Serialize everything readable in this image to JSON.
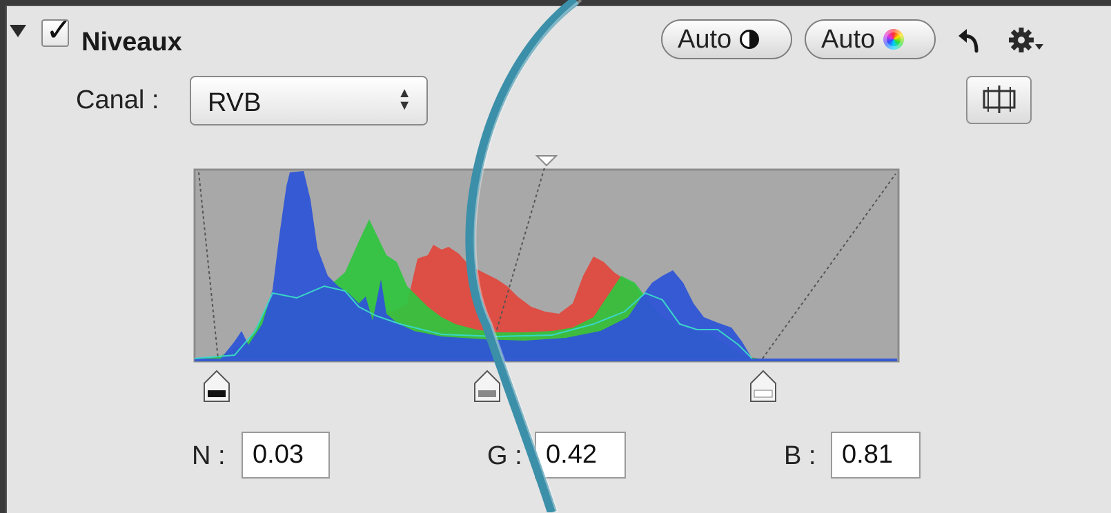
{
  "panel": {
    "title": "Niveaux",
    "enabled_check": "✓"
  },
  "toolbar": {
    "auto_contrast_label": "Auto",
    "auto_color_label": "Auto",
    "icons": [
      "disclosure-triangle-icon",
      "checkbox-icon",
      "contrast-icon",
      "color-wheel-icon",
      "undo-icon",
      "gear-icon",
      "compare-icon"
    ]
  },
  "channel": {
    "label": "Canal :",
    "selected": "RVB"
  },
  "levels": {
    "black_label": "N :",
    "black_value": "0.03",
    "gray_label": "G :",
    "gray_value": "0.42",
    "white_label": "B :",
    "white_value": "0.81"
  },
  "colors": {
    "red": "#e2463c",
    "green": "#2fc53f",
    "blue": "#2f55d6",
    "histogram_bg": "#a8a8a8",
    "lens": "#3c8fa8"
  }
}
